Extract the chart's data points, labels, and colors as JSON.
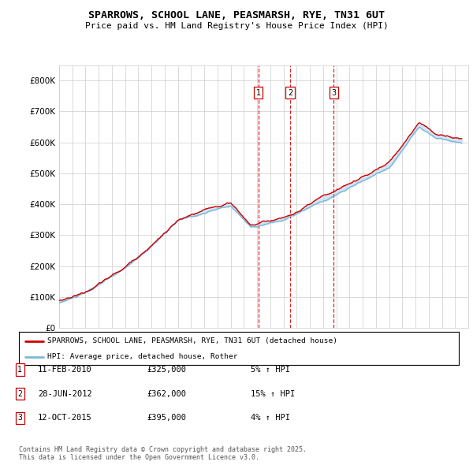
{
  "title": "SPARROWS, SCHOOL LANE, PEASMARSH, RYE, TN31 6UT",
  "subtitle": "Price paid vs. HM Land Registry's House Price Index (HPI)",
  "legend_line1": "SPARROWS, SCHOOL LANE, PEASMARSH, RYE, TN31 6UT (detached house)",
  "legend_line2": "HPI: Average price, detached house, Rother",
  "transactions": [
    {
      "num": 1,
      "date": "11-FEB-2010",
      "price": 325000,
      "pct": "5%",
      "dir": "↑",
      "ref": "HPI",
      "year": 2010.1
    },
    {
      "num": 2,
      "date": "28-JUN-2012",
      "price": 362000,
      "pct": "15%",
      "dir": "↑",
      "ref": "HPI",
      "year": 2012.5
    },
    {
      "num": 3,
      "date": "12-OCT-2015",
      "price": 395000,
      "pct": "4%",
      "dir": "↑",
      "ref": "HPI",
      "year": 2015.8
    }
  ],
  "footer": "Contains HM Land Registry data © Crown copyright and database right 2025.\nThis data is licensed under the Open Government Licence v3.0.",
  "hpi_color": "#7ab8d8",
  "price_color": "#cc0000",
  "vline_color": "#cc0000",
  "shade_color": "#c8dff0",
  "grid_color": "#cccccc",
  "background_color": "#ffffff",
  "ylim": [
    0,
    850000
  ],
  "xmin": 1995,
  "xmax": 2026
}
